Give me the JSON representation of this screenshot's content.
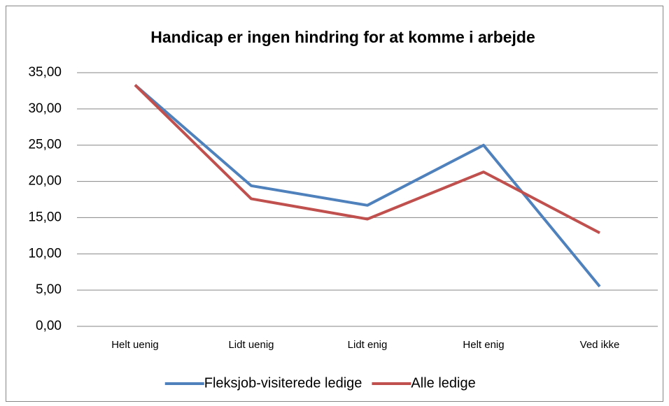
{
  "chart_data": {
    "type": "line",
    "title": "Handicap er ingen hindring for at komme i arbejde",
    "categories": [
      "Helt uenig",
      "Lidt uenig",
      "Lidt enig",
      "Helt enig",
      "Ved ikke"
    ],
    "series": [
      {
        "name": "Fleksjob-visiterede ledige",
        "color": "#4f81bd",
        "values": [
          33.3,
          19.4,
          16.7,
          25.0,
          5.5
        ]
      },
      {
        "name": "Alle ledige",
        "color": "#c0504d",
        "values": [
          33.3,
          17.6,
          14.8,
          21.3,
          12.9
        ]
      }
    ],
    "ylim": [
      0,
      35
    ],
    "yticks": [
      {
        "value": 0,
        "label": "0,00"
      },
      {
        "value": 5,
        "label": "5,00"
      },
      {
        "value": 10,
        "label": "10,00"
      },
      {
        "value": 15,
        "label": "15,00"
      },
      {
        "value": 20,
        "label": "20,00"
      },
      {
        "value": 25,
        "label": "25,00"
      },
      {
        "value": 30,
        "label": "30,00"
      },
      {
        "value": 35,
        "label": "35,00"
      }
    ],
    "grid": true,
    "legend": "bottom"
  }
}
